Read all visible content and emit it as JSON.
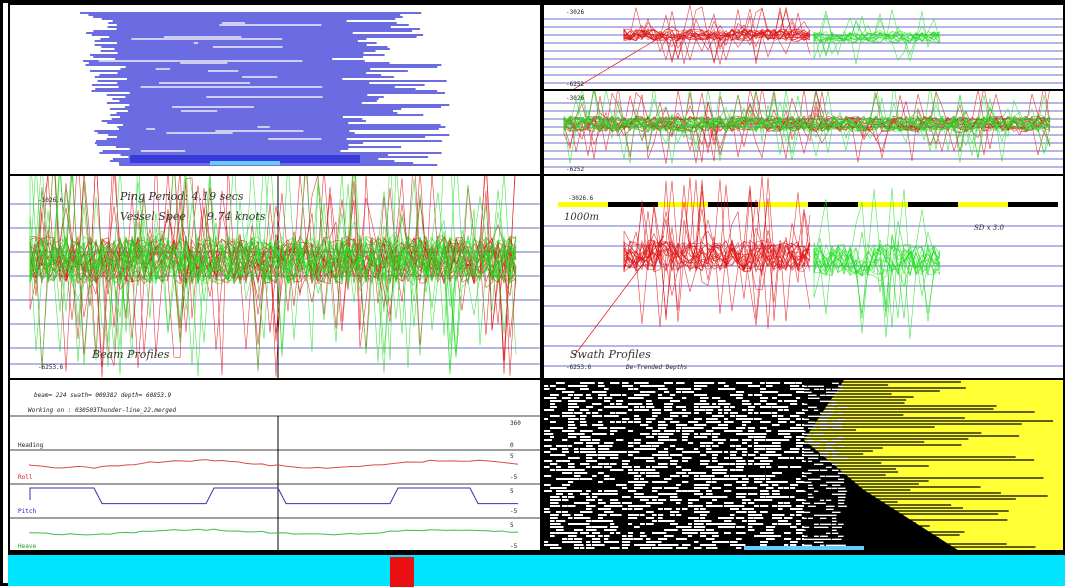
{
  "colors": {
    "coverage_blue": "#3a3ad8",
    "profile_red": "#e01010",
    "profile_green": "#22dd22",
    "grid_blue": "#6d6dcc",
    "scale_yellow": "#ffff00",
    "backscatter_yellow": "#ffff33",
    "nav_bar_cyan": "#00e5ff",
    "position_marker_red": "#e81010"
  },
  "top_right_upper": {
    "depth_top": "-3026",
    "depth_bottom": "-6252"
  },
  "top_right_lower": {
    "depth_top": "-3026",
    "depth_bottom": "-6252"
  },
  "beam_profiles": {
    "depth_top": "-3026.6",
    "depth_bottom": "-6253.6",
    "ping_period": "Ping Period: 4.19 secs",
    "vessel_speed_prefix": "Vessel Spee",
    "vessel_speed_value": "9.74 knots",
    "title": "Beam Profiles"
  },
  "swath_profiles": {
    "depth_top": "-3026.6",
    "depth_bottom": "-6253.6",
    "scale_label": "1000m",
    "sd_label": "SD x 3.0",
    "title": "Swath Profiles",
    "subtitle": "De-Trended Depths"
  },
  "attitude": {
    "info_line": "beam= 224 swath= 009382 depth= 60853.9",
    "file_line": "Working on : 030503Thunder-line_22.merged",
    "scale_label": "360",
    "heading_label": "Heading",
    "heading_value": "0",
    "roll_label": "Roll",
    "roll_top": "5",
    "roll_bottom": "-5",
    "pitch_label": "Pitch",
    "pitch_top": "5",
    "pitch_bottom": "-5",
    "heave_label": "Heave",
    "heave_top": "5",
    "heave_bottom": "-5"
  }
}
